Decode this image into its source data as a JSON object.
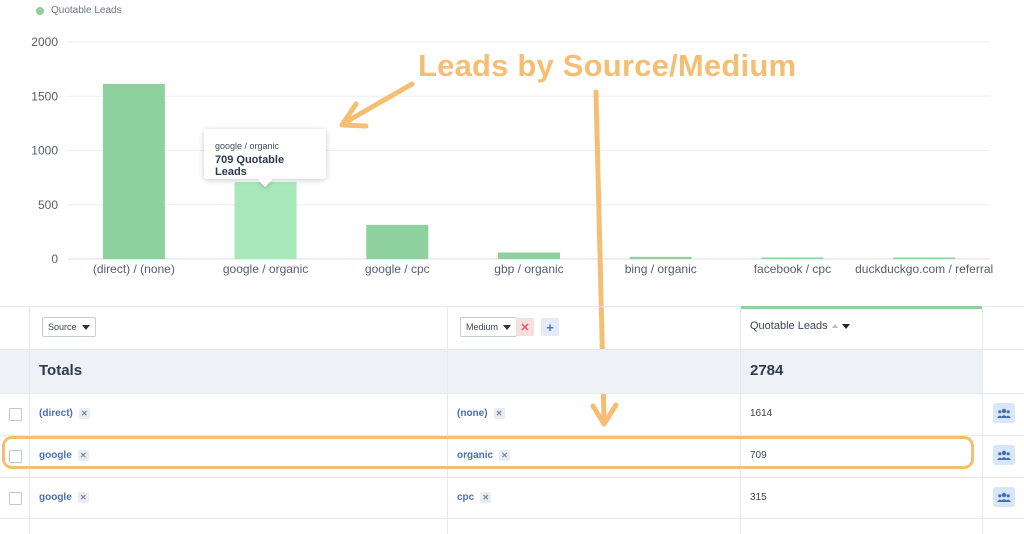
{
  "legend": {
    "label": "Quotable Leads",
    "color": "#8fd19e"
  },
  "chart_data": {
    "type": "bar",
    "categories": [
      "(direct) / (none)",
      "google / organic",
      "google / cpc",
      "gbp / organic",
      "bing / organic",
      "facebook / cpc",
      "duckduckgo.com / referral"
    ],
    "series": [
      {
        "name": "Quotable Leads",
        "values": [
          1614,
          709,
          315,
          60,
          20,
          6,
          5
        ]
      }
    ],
    "ylim": [
      0,
      2000
    ],
    "yticks": [
      "0",
      "500",
      "1000",
      "1500",
      "2000"
    ],
    "grid": true,
    "bar_color": "#8fd19e",
    "highlight_color": "#a8e8b8",
    "highlight_index": 1
  },
  "tooltip": {
    "label": "google / organic",
    "value": "709 Quotable Leads"
  },
  "annotation": {
    "title": "Leads by Source/Medium",
    "color": "#f5be72"
  },
  "table": {
    "source_select": "Source",
    "medium_select": "Medium",
    "column_header": "Quotable Leads",
    "totals_label": "Totals",
    "totals_value": "2784",
    "rows": [
      {
        "source": "(direct)",
        "medium": "(none)",
        "value": "1614"
      },
      {
        "source": "google",
        "medium": "organic",
        "value": "709"
      },
      {
        "source": "google",
        "medium": "cpc",
        "value": "315"
      }
    ]
  }
}
